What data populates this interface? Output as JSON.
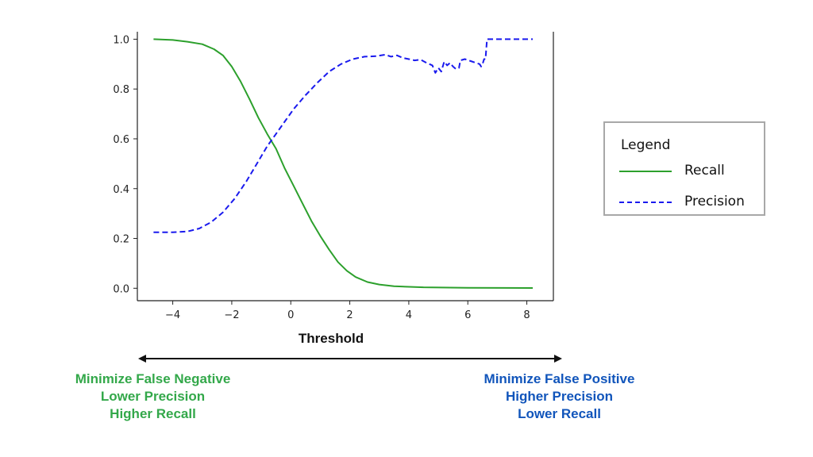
{
  "colors": {
    "recall": "#2ca02c",
    "precision": "#1a1aee",
    "left_caption": "#33a84a",
    "right_caption": "#1155bb",
    "axes": "#222222"
  },
  "chart_data": {
    "type": "line",
    "title": "",
    "xlabel": "Threshold",
    "ylabel": "",
    "xlim": [
      -5.2,
      8.9
    ],
    "ylim": [
      -0.05,
      1.03
    ],
    "grid": false,
    "x_ticks": [
      -4,
      -2,
      0,
      2,
      4,
      6,
      8
    ],
    "x_tick_labels": [
      "−4",
      "−2",
      "0",
      "2",
      "4",
      "6",
      "8"
    ],
    "y_ticks": [
      0.0,
      0.2,
      0.4,
      0.6,
      0.8,
      1.0
    ],
    "y_tick_labels": [
      "0.0",
      "0.2",
      "0.4",
      "0.6",
      "0.8",
      "1.0"
    ],
    "series": [
      {
        "name": "Recall",
        "style": "solid",
        "points": [
          [
            -4.65,
            1.0
          ],
          [
            -4.0,
            0.997
          ],
          [
            -3.5,
            0.99
          ],
          [
            -3.0,
            0.98
          ],
          [
            -2.6,
            0.96
          ],
          [
            -2.3,
            0.935
          ],
          [
            -2.0,
            0.89
          ],
          [
            -1.7,
            0.83
          ],
          [
            -1.4,
            0.76
          ],
          [
            -1.1,
            0.685
          ],
          [
            -0.8,
            0.62
          ],
          [
            -0.5,
            0.56
          ],
          [
            -0.2,
            0.48
          ],
          [
            0.1,
            0.41
          ],
          [
            0.4,
            0.34
          ],
          [
            0.7,
            0.27
          ],
          [
            1.0,
            0.21
          ],
          [
            1.3,
            0.155
          ],
          [
            1.6,
            0.105
          ],
          [
            1.9,
            0.07
          ],
          [
            2.2,
            0.045
          ],
          [
            2.6,
            0.025
          ],
          [
            3.0,
            0.015
          ],
          [
            3.5,
            0.008
          ],
          [
            4.5,
            0.004
          ],
          [
            6.0,
            0.002
          ],
          [
            8.2,
            0.001
          ]
        ]
      },
      {
        "name": "Precision",
        "style": "dashed",
        "points": [
          [
            -4.65,
            0.225
          ],
          [
            -4.0,
            0.225
          ],
          [
            -3.5,
            0.228
          ],
          [
            -3.1,
            0.24
          ],
          [
            -2.7,
            0.265
          ],
          [
            -2.3,
            0.305
          ],
          [
            -1.9,
            0.36
          ],
          [
            -1.5,
            0.43
          ],
          [
            -1.1,
            0.51
          ],
          [
            -0.8,
            0.57
          ],
          [
            -0.5,
            0.62
          ],
          [
            -0.2,
            0.67
          ],
          [
            0.1,
            0.72
          ],
          [
            0.5,
            0.775
          ],
          [
            0.9,
            0.825
          ],
          [
            1.3,
            0.87
          ],
          [
            1.7,
            0.9
          ],
          [
            2.1,
            0.92
          ],
          [
            2.5,
            0.93
          ],
          [
            2.9,
            0.932
          ],
          [
            3.2,
            0.938
          ],
          [
            3.4,
            0.93
          ],
          [
            3.6,
            0.935
          ],
          [
            3.8,
            0.925
          ],
          [
            4.0,
            0.92
          ],
          [
            4.2,
            0.915
          ],
          [
            4.4,
            0.918
          ],
          [
            4.6,
            0.905
          ],
          [
            4.8,
            0.895
          ],
          [
            4.9,
            0.865
          ],
          [
            5.0,
            0.885
          ],
          [
            5.1,
            0.87
          ],
          [
            5.2,
            0.91
          ],
          [
            5.3,
            0.895
          ],
          [
            5.4,
            0.905
          ],
          [
            5.5,
            0.89
          ],
          [
            5.6,
            0.88
          ],
          [
            5.7,
            0.885
          ],
          [
            5.75,
            0.915
          ],
          [
            5.9,
            0.92
          ],
          [
            6.1,
            0.912
          ],
          [
            6.4,
            0.9
          ],
          [
            6.45,
            0.89
          ],
          [
            6.5,
            0.9
          ],
          [
            6.55,
            0.92
          ],
          [
            6.6,
            0.92
          ],
          [
            6.65,
            1.0
          ],
          [
            7.0,
            1.0
          ],
          [
            8.2,
            1.0
          ]
        ]
      }
    ]
  },
  "legend": {
    "title": "Legend",
    "items": [
      "Recall",
      "Precision"
    ]
  },
  "captions": {
    "left": [
      "Minimize False Negative",
      "Lower Precision",
      "Higher Recall"
    ],
    "right": [
      "Minimize False Positive",
      "Higher Precision",
      "Lower Recall"
    ]
  }
}
